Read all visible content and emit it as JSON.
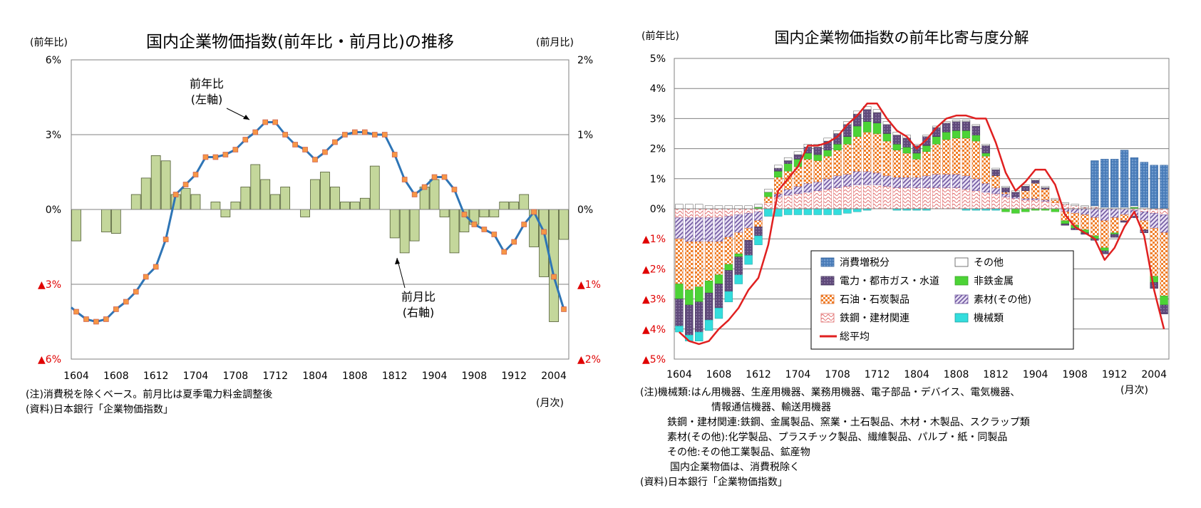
{
  "left_chart_meta": {
    "title": "国内企業物価指数(前年比・前月比)の推移",
    "left_axis_unit": "(前年比)",
    "right_axis_unit": "(前月比)",
    "x_axis_unit": "(月次)",
    "annotation_yoy": [
      "前年比",
      "(左軸)"
    ],
    "annotation_mom": [
      "前月比",
      "(右軸)"
    ],
    "notes": [
      "(注)消費税を除くベース。前月比は夏季電力料金調整後",
      "(資料)日本銀行「企業物価指数」"
    ]
  },
  "right_chart_meta": {
    "title": "国内企業物価指数の前年比寄与度分解",
    "axis_unit": "(前年比)",
    "x_axis_unit": "(月次)",
    "notes": [
      "(注)機械類:はん用機器、生産用機器、業務用機器、電子部品・デバイス、電気機器、",
      "情報通信機器、輸送用機器",
      "鉄鋼・建材関連:鉄鋼、金属製品、窯業・土石製品、木材・木製品、スクラップ類",
      "素材(その他):化学製品、プラスチック製品、繊維製品、パルプ・紙・同製品",
      "その他:その他工業製品、鉱産物",
      "国内企業物価は、消費税除く",
      "(資料)日本銀行「企業物価指数」"
    ]
  },
  "chart_data": [
    {
      "type": "bar+line",
      "title": "国内企業物価指数(前年比・前月比)の推移",
      "xlabel": "(月次)",
      "ylabel_left": "(前年比)",
      "ylabel_right": "(前月比)",
      "ylim_left": [
        -6,
        6
      ],
      "ylim_right": [
        -2,
        2
      ],
      "left_ticks": [
        "6%",
        "3%",
        "0%",
        "▲3%",
        "▲6%"
      ],
      "right_ticks": [
        "2%",
        "1%",
        "0%",
        "▲1%",
        "▲2%"
      ],
      "x_tick_labels": [
        "1604",
        "1608",
        "1612",
        "1704",
        "1708",
        "1712",
        "1804",
        "1808",
        "1812",
        "1904",
        "1908",
        "1912",
        "2004"
      ],
      "categories": [
        "1604",
        "1605",
        "1606",
        "1607",
        "1608",
        "1609",
        "1610",
        "1611",
        "1612",
        "1701",
        "1702",
        "1703",
        "1704",
        "1705",
        "1706",
        "1707",
        "1708",
        "1709",
        "1710",
        "1711",
        "1712",
        "1801",
        "1802",
        "1803",
        "1804",
        "1805",
        "1806",
        "1807",
        "1808",
        "1809",
        "1810",
        "1811",
        "1812",
        "1901",
        "1902",
        "1903",
        "1904",
        "1905",
        "1906",
        "1907",
        "1908",
        "1909",
        "1910",
        "1911",
        "1912",
        "2001",
        "2002",
        "2003",
        "2004",
        "2005"
      ],
      "series": [
        {
          "name": "前月比(右軸)",
          "kind": "bar",
          "axis": "right",
          "color": "#c4d79b",
          "values": [
            -0.42,
            0,
            0,
            -0.3,
            -0.32,
            0,
            0.2,
            0.42,
            0.72,
            0.65,
            0.2,
            0.28,
            0.2,
            0,
            0.1,
            -0.1,
            0.1,
            0.3,
            0.6,
            0.4,
            0.2,
            0.3,
            0,
            -0.1,
            0.4,
            0.5,
            0.3,
            0.1,
            0.1,
            0.15,
            0.58,
            0,
            -0.38,
            -0.58,
            -0.42,
            0.3,
            0.4,
            -0.1,
            -0.58,
            -0.3,
            -0.2,
            -0.1,
            -0.1,
            0.1,
            0.1,
            0.2,
            -0.5,
            -0.9,
            -1.5,
            -0.4
          ]
        },
        {
          "name": "前年比(左軸)",
          "kind": "line",
          "axis": "left",
          "color": "#2e75b6",
          "marker_color": "#f79646",
          "values": [
            -4.1,
            -4.4,
            -4.5,
            -4.4,
            -4.0,
            -3.7,
            -3.3,
            -2.7,
            -2.3,
            -1.2,
            0.6,
            1.0,
            1.4,
            2.1,
            2.1,
            2.2,
            2.4,
            2.8,
            3.1,
            3.5,
            3.5,
            3.0,
            2.6,
            2.4,
            2.0,
            2.3,
            2.7,
            3.0,
            3.1,
            3.1,
            3.0,
            3.0,
            2.2,
            1.2,
            0.6,
            0.9,
            1.3,
            1.3,
            0.8,
            -0.2,
            -0.6,
            -0.8,
            -1.0,
            -1.7,
            -1.3,
            -0.6,
            -0.1,
            -0.9,
            -2.7,
            -4.0
          ]
        }
      ]
    },
    {
      "type": "stacked_bar+line",
      "title": "国内企業物価指数の前年比寄与度分解",
      "xlabel": "(月次)",
      "ylabel": "(前年比)",
      "ylim": [
        -5,
        5
      ],
      "y_ticks": [
        "5%",
        "4%",
        "3%",
        "2%",
        "1%",
        "0%",
        "▲1%",
        "▲2%",
        "▲3%",
        "▲4%",
        "▲5%"
      ],
      "x_tick_labels": [
        "1604",
        "1608",
        "1612",
        "1704",
        "1708",
        "1712",
        "1804",
        "1808",
        "1812",
        "1904",
        "1908",
        "1912",
        "2004"
      ],
      "categories": [
        "1604",
        "1605",
        "1606",
        "1607",
        "1608",
        "1609",
        "1610",
        "1611",
        "1612",
        "1701",
        "1702",
        "1703",
        "1704",
        "1705",
        "1706",
        "1707",
        "1708",
        "1709",
        "1710",
        "1711",
        "1712",
        "1801",
        "1802",
        "1803",
        "1804",
        "1805",
        "1806",
        "1807",
        "1808",
        "1809",
        "1810",
        "1811",
        "1812",
        "1901",
        "1902",
        "1903",
        "1904",
        "1905",
        "1906",
        "1907",
        "1908",
        "1909",
        "1910",
        "1911",
        "1912",
        "2001",
        "2002",
        "2003",
        "2004",
        "2005"
      ],
      "series": [
        {
          "name": "鉄鋼・建材関連",
          "color": "#f4b6b6",
          "pattern": "wave",
          "values": [
            -0.3,
            -0.3,
            -0.3,
            -0.3,
            -0.3,
            -0.25,
            -0.2,
            -0.15,
            -0.1,
            0.2,
            0.4,
            0.45,
            0.5,
            0.55,
            0.6,
            0.65,
            0.7,
            0.75,
            0.8,
            0.8,
            0.8,
            0.75,
            0.7,
            0.7,
            0.7,
            0.7,
            0.7,
            0.7,
            0.7,
            0.65,
            0.6,
            0.55,
            0.5,
            0.4,
            0.35,
            0.3,
            0.3,
            0.25,
            0.2,
            0.15,
            0.1,
            0.05,
            0.05,
            0,
            0,
            0,
            -0.05,
            -0.1,
            -0.15,
            -0.2
          ]
        },
        {
          "name": "素材(その他)",
          "color": "#8064a2",
          "pattern": "diag",
          "values": [
            -0.7,
            -0.8,
            -0.8,
            -0.8,
            -0.8,
            -0.7,
            -0.6,
            -0.5,
            -0.3,
            0,
            0.1,
            0.2,
            0.25,
            0.3,
            0.3,
            0.35,
            0.4,
            0.4,
            0.45,
            0.45,
            0.4,
            0.35,
            0.35,
            0.35,
            0.35,
            0.4,
            0.45,
            0.45,
            0.45,
            0.45,
            0.4,
            0.3,
            0.2,
            0.1,
            0.05,
            0.05,
            0.05,
            0.05,
            0,
            -0.1,
            -0.15,
            -0.2,
            -0.3,
            -0.4,
            -0.3,
            -0.2,
            -0.2,
            -0.3,
            -0.5,
            -0.6
          ]
        },
        {
          "name": "石油・石炭製品",
          "color": "#f79646",
          "pattern": "check",
          "values": [
            -1.5,
            -1.6,
            -1.5,
            -1.3,
            -1.1,
            -0.9,
            -0.7,
            -0.4,
            -0.2,
            0.2,
            0.55,
            0.6,
            0.65,
            0.8,
            0.7,
            0.75,
            0.85,
            1.0,
            1.15,
            1.3,
            1.3,
            1.15,
            0.9,
            0.8,
            0.6,
            0.8,
            1.0,
            1.15,
            1.2,
            1.25,
            1.25,
            0.9,
            0.4,
            0.05,
            0,
            0.25,
            0.5,
            0.35,
            0.1,
            -0.3,
            -0.4,
            -0.5,
            -0.6,
            -0.9,
            -0.5,
            -0.2,
            0,
            -0.3,
            -1.6,
            -2.1
          ]
        },
        {
          "name": "非鉄金属",
          "color": "#4cd336",
          "pattern": "solid",
          "values": [
            -0.5,
            -0.5,
            -0.5,
            -0.4,
            -0.3,
            -0.2,
            -0.1,
            0,
            0.05,
            0.15,
            0.2,
            0.25,
            0.25,
            0.2,
            0.2,
            0.2,
            0.2,
            0.25,
            0.35,
            0.35,
            0.35,
            0.25,
            0.2,
            0.2,
            0.2,
            0.2,
            0.25,
            0.25,
            0.25,
            0.25,
            0.2,
            0.1,
            0,
            -0.1,
            -0.15,
            -0.1,
            -0.05,
            -0.05,
            -0.1,
            -0.1,
            -0.1,
            -0.1,
            -0.1,
            -0.1,
            -0.05,
            0,
            0.05,
            0,
            -0.2,
            -0.3
          ]
        },
        {
          "name": "電力・都市ガス・水道",
          "color": "#604a7b",
          "pattern": "dots",
          "values": [
            -0.9,
            -1.0,
            -1.0,
            -0.9,
            -0.8,
            -0.7,
            -0.6,
            -0.5,
            -0.3,
            0,
            0.1,
            0.1,
            0.15,
            0.2,
            0.25,
            0.3,
            0.35,
            0.4,
            0.4,
            0.4,
            0.35,
            0.3,
            0.3,
            0.3,
            0.25,
            0.3,
            0.3,
            0.3,
            0.3,
            0.3,
            0.3,
            0.25,
            0.2,
            0.15,
            0.15,
            0.15,
            0.1,
            0.05,
            0,
            -0.05,
            -0.05,
            -0.05,
            -0.05,
            -0.1,
            -0.1,
            -0.05,
            -0.05,
            -0.1,
            -0.2,
            -0.3
          ]
        },
        {
          "name": "機械類",
          "color": "#33dddd",
          "pattern": "solid",
          "values": [
            -0.2,
            -0.2,
            -0.3,
            -0.35,
            -0.35,
            -0.35,
            -0.3,
            -0.3,
            -0.3,
            -0.25,
            -0.25,
            -0.2,
            -0.2,
            -0.2,
            -0.2,
            -0.2,
            -0.2,
            -0.15,
            -0.1,
            -0.05,
            0,
            0,
            -0.05,
            -0.05,
            -0.05,
            -0.05,
            0,
            0,
            0,
            -0.05,
            -0.05,
            -0.05,
            -0.05,
            0,
            0,
            0,
            0,
            0,
            0,
            0,
            0,
            0,
            0,
            0,
            0,
            0,
            0,
            0,
            0,
            0
          ]
        },
        {
          "name": "その他",
          "color": "#ffffff",
          "pattern": "solid",
          "values": [
            0.15,
            0.15,
            0.15,
            0.1,
            0.1,
            0.1,
            0.1,
            0.1,
            0.1,
            0.1,
            0.1,
            0.1,
            0.1,
            0.1,
            0.1,
            0.1,
            0.1,
            0.1,
            0.1,
            0.1,
            0.1,
            0.1,
            0.1,
            0.1,
            0.05,
            0.05,
            0.05,
            0.05,
            0.05,
            0.05,
            0.05,
            0.05,
            0.05,
            0.05,
            0.05,
            0.05,
            0.05,
            0.05,
            0.05,
            0.05,
            0.05,
            0.05,
            0.05,
            0.05,
            0.05,
            0.05,
            0.05,
            0.05,
            0,
            0
          ]
        },
        {
          "name": "消費増税分",
          "color": "#4f81bd",
          "pattern": "dots",
          "values": [
            0,
            0,
            0,
            0,
            0,
            0,
            0,
            0,
            0,
            0,
            0,
            0,
            0,
            0,
            0,
            0,
            0,
            0,
            0,
            0,
            0,
            0,
            0,
            0,
            0,
            0,
            0,
            0,
            0,
            0,
            0,
            0,
            0,
            0,
            0,
            0,
            0,
            0,
            0,
            0,
            0,
            0,
            1.5,
            1.6,
            1.6,
            1.9,
            1.6,
            1.5,
            1.45,
            1.45
          ]
        }
      ],
      "line": {
        "name": "総平均",
        "color": "#e02020",
        "values": [
          -4.1,
          -4.4,
          -4.5,
          -4.4,
          -4.0,
          -3.7,
          -3.3,
          -2.7,
          -2.3,
          -1.2,
          0.6,
          1.0,
          1.4,
          2.1,
          2.1,
          2.2,
          2.4,
          2.8,
          3.1,
          3.5,
          3.5,
          3.0,
          2.6,
          2.4,
          2.0,
          2.3,
          2.7,
          3.0,
          3.1,
          3.1,
          3.0,
          3.0,
          2.2,
          1.2,
          0.6,
          0.9,
          1.3,
          1.3,
          0.8,
          -0.2,
          -0.6,
          -0.8,
          -1.0,
          -1.7,
          -1.3,
          -0.6,
          -0.1,
          -0.9,
          -2.7,
          -4.0
        ]
      },
      "legend_order": [
        "消費増税分",
        "その他",
        "電力・都市ガス・水道",
        "非鉄金属",
        "石油・石炭製品",
        "素材(その他)",
        "鉄鋼・建材関連",
        "機械類",
        "総平均"
      ]
    }
  ]
}
